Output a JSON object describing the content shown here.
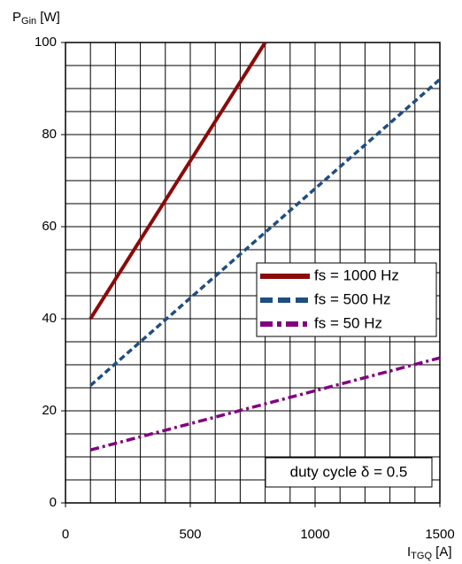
{
  "chart_data": {
    "type": "line",
    "ylabel": {
      "main": "P",
      "sub": "Gin",
      "unit": " [W]"
    },
    "xlabel": {
      "main": "I",
      "sub": "TGQ",
      "unit": " [A]"
    },
    "xlim": [
      0,
      1500
    ],
    "ylim": [
      0,
      100
    ],
    "xticks": [
      0,
      500,
      1000,
      1500
    ],
    "yticks": [
      0,
      20,
      40,
      60,
      80,
      100
    ],
    "xgrid": [
      0,
      100,
      200,
      300,
      400,
      500,
      600,
      700,
      800,
      900,
      1000,
      1100,
      1200,
      1300,
      1400,
      1500
    ],
    "ygrid": [
      0,
      5,
      10,
      15,
      20,
      25,
      30,
      35,
      40,
      45,
      50,
      55,
      60,
      65,
      70,
      75,
      80,
      85,
      90,
      95,
      100
    ],
    "grid": true,
    "series": [
      {
        "name": "fs = 1000 Hz",
        "color": "#8b0a0a",
        "dash": "solid",
        "x": [
          100,
          800
        ],
        "values": [
          40,
          100
        ]
      },
      {
        "name": "fs = 500 Hz",
        "color": "#1f4e80",
        "dash": "dashed",
        "x": [
          100,
          1500
        ],
        "values": [
          25.5,
          92
        ]
      },
      {
        "name": "fs = 50 Hz",
        "color": "#800080",
        "dash": "dashdot",
        "x": [
          100,
          1500
        ],
        "values": [
          11.5,
          31.5
        ]
      }
    ],
    "annotation": "duty cycle δ = 0.5"
  }
}
